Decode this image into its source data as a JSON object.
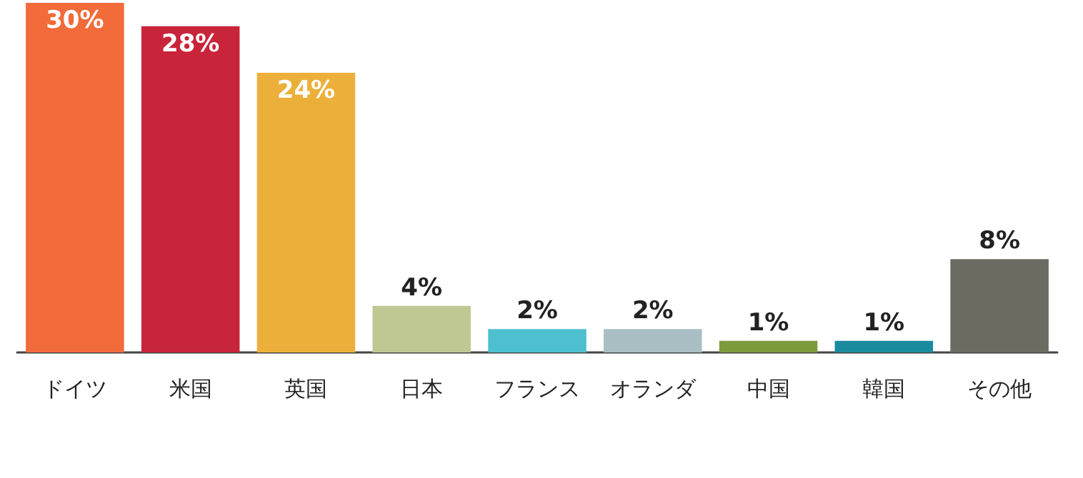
{
  "chart_data": {
    "type": "bar",
    "categories": [
      "ドイツ",
      "米国",
      "英国",
      "日本",
      "フランス",
      "オランダ",
      "中国",
      "韓国",
      "その他"
    ],
    "values": [
      30,
      28,
      24,
      4,
      2,
      2,
      1,
      1,
      8
    ],
    "colors": [
      "#f26b3a",
      "#c8243a",
      "#ecb03a",
      "#bfc893",
      "#4dbfcf",
      "#a9bfc4",
      "#7d9a3c",
      "#1a8b9f",
      "#6b6b62"
    ],
    "value_labels": [
      "30%",
      "28%",
      "24%",
      "4%",
      "2%",
      "2%",
      "1%",
      "1%",
      "8%"
    ]
  }
}
